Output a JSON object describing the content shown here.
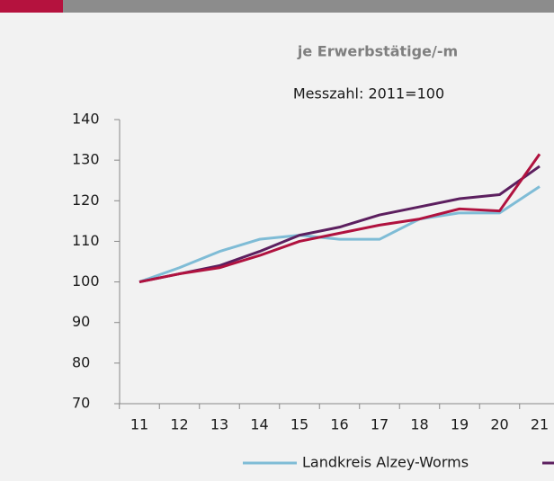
{
  "chart_data": {
    "type": "line",
    "title": "je Erwerbstätige/-m",
    "subtitle": "Messzahl: 2011=100",
    "categories": [
      "11",
      "12",
      "13",
      "14",
      "15",
      "16",
      "17",
      "18",
      "19",
      "20",
      "21"
    ],
    "series": [
      {
        "name": "Landkreis Alzey-Worms",
        "color": "#7fbcd6",
        "values": [
          100,
          103.5,
          107.5,
          110.5,
          111.5,
          110.5,
          110.5,
          115.5,
          117,
          117,
          123.5
        ]
      },
      {
        "color": "#5c1f5f",
        "values": [
          100,
          102,
          104,
          107.5,
          111.5,
          113.5,
          116.5,
          118.5,
          120.5,
          121.5,
          128.5
        ]
      },
      {
        "color": "#b0123f",
        "values": [
          100,
          102,
          103.5,
          106.5,
          110,
          112,
          114,
          115.5,
          118,
          117.5,
          131.5
        ]
      }
    ],
    "ylim": [
      70,
      140
    ],
    "yticks": [
      70,
      80,
      90,
      100,
      110,
      120,
      130,
      140
    ]
  }
}
